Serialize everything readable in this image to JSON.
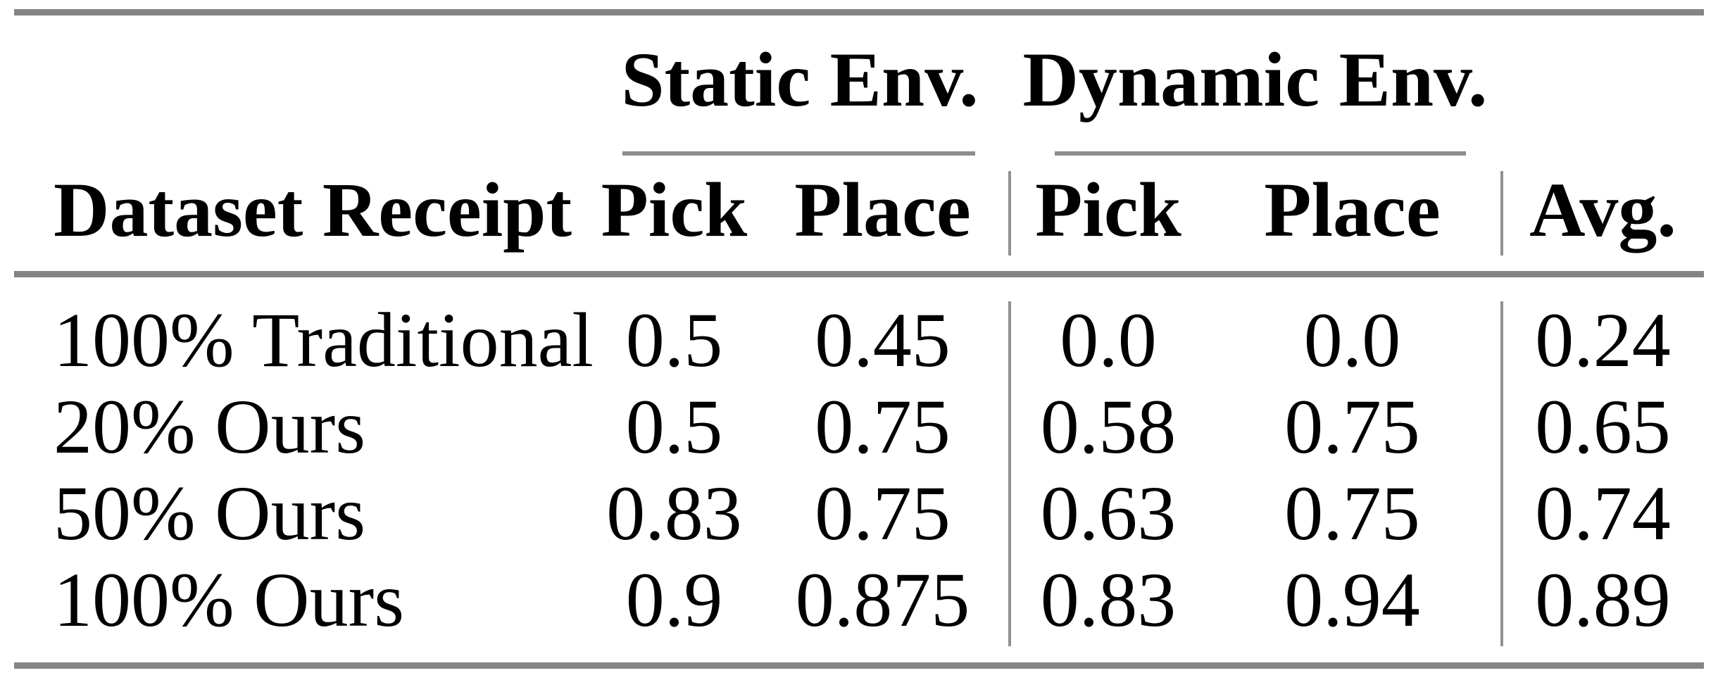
{
  "table": {
    "title_groups": {
      "static": "Static Env.",
      "dynamic": "Dynamic Env."
    },
    "headers": {
      "dataset": "Dataset Receipt",
      "static_pick": "Pick",
      "static_place": "Place",
      "dynamic_pick": "Pick",
      "dynamic_place": "Place",
      "avg": "Avg."
    },
    "rows": [
      {
        "dataset": "100% Traditional",
        "static_pick": "0.5",
        "static_place": "0.45",
        "dynamic_pick": "0.0",
        "dynamic_place": "0.0",
        "avg": "0.24"
      },
      {
        "dataset": "20% Ours",
        "static_pick": "0.5",
        "static_place": "0.75",
        "dynamic_pick": "0.58",
        "dynamic_place": "0.75",
        "avg": "0.65"
      },
      {
        "dataset": "50% Ours",
        "static_pick": "0.83",
        "static_place": "0.75",
        "dynamic_pick": "0.63",
        "dynamic_place": "0.75",
        "avg": "0.74"
      },
      {
        "dataset": "100% Ours",
        "static_pick": "0.9",
        "static_place": "0.875",
        "dynamic_pick": "0.83",
        "dynamic_place": "0.94",
        "avg": "0.89"
      }
    ],
    "colors": {
      "rule_gray": "#848484",
      "thin_rule_gray": "#909090",
      "text": "#000000",
      "background": "#ffffff"
    }
  },
  "chart_data": {
    "type": "table",
    "title": "",
    "column_groups": [
      "Static Env.",
      "Dynamic Env."
    ],
    "columns": [
      "Dataset Receipt",
      "Static Env. Pick",
      "Static Env. Place",
      "Dynamic Env. Pick",
      "Dynamic Env. Place",
      "Avg."
    ],
    "rows": [
      [
        "100% Traditional",
        0.5,
        0.45,
        0.0,
        0.0,
        0.24
      ],
      [
        "20% Ours",
        0.5,
        0.75,
        0.58,
        0.75,
        0.65
      ],
      [
        "50% Ours",
        0.83,
        0.75,
        0.63,
        0.75,
        0.74
      ],
      [
        "100% Ours",
        0.9,
        0.875,
        0.83,
        0.94,
        0.89
      ]
    ]
  }
}
